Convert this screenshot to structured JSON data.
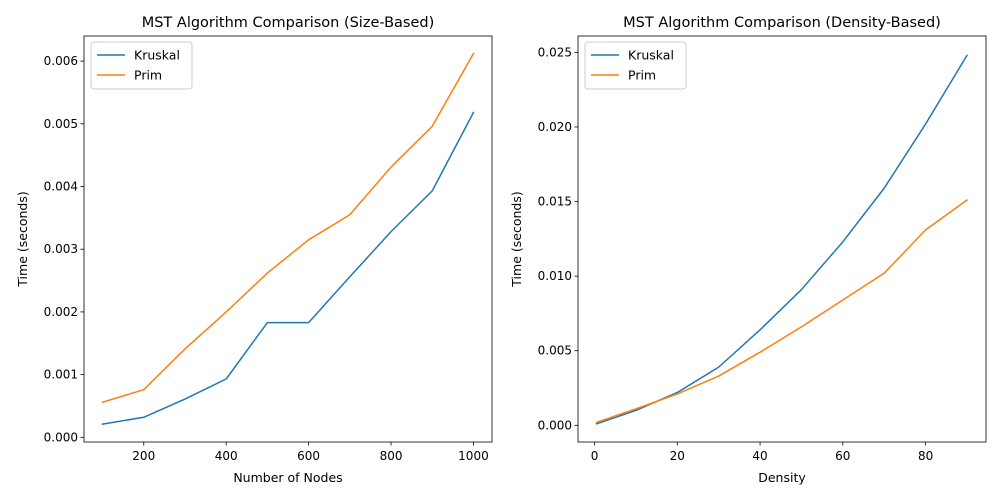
{
  "chart_data": [
    {
      "type": "line",
      "title": "MST Algorithm Comparison (Size-Based)",
      "xlabel": "Number of Nodes",
      "ylabel": "Time (seconds)",
      "xlim": [
        55,
        1045
      ],
      "ylim": [
        -7.46e-05,
        0.0064
      ],
      "xticks": [
        200,
        400,
        600,
        800,
        1000
      ],
      "xtick_labels": [
        "200",
        "400",
        "600",
        "800",
        "1000"
      ],
      "yticks": [
        0,
        0.001,
        0.002,
        0.003,
        0.004,
        0.005,
        0.006
      ],
      "ytick_labels": [
        "0.000",
        "0.001",
        "0.002",
        "0.003",
        "0.004",
        "0.005",
        "0.006"
      ],
      "legend_position": "top-left",
      "grid": false,
      "x": [
        100,
        200,
        300,
        400,
        500,
        600,
        700,
        800,
        900,
        1000
      ],
      "series": [
        {
          "name": "Kruskal",
          "color": "#1f77b4",
          "values": [
            0.00021,
            0.00032,
            0.00061,
            0.00093,
            0.00183,
            0.00183,
            0.00256,
            0.00328,
            0.00393,
            0.00518
          ]
        },
        {
          "name": "Prim",
          "color": "#ff7f0e",
          "values": [
            0.00056,
            0.00076,
            0.00141,
            0.002,
            0.00262,
            0.00315,
            0.00355,
            0.00431,
            0.00496,
            0.00612
          ]
        }
      ]
    },
    {
      "type": "line",
      "title": "MST Algorithm Comparison (Density-Based)",
      "xlabel": "Density",
      "ylabel": "Time (seconds)",
      "xlim": [
        -4,
        94.6
      ],
      "ylim": [
        -0.00112,
        0.0261
      ],
      "xticks": [
        0,
        20,
        40,
        60,
        80
      ],
      "xtick_labels": [
        "0",
        "20",
        "40",
        "60",
        "80"
      ],
      "yticks": [
        0,
        0.005,
        0.01,
        0.015,
        0.02,
        0.025
      ],
      "ytick_labels": [
        "0.000",
        "0.005",
        "0.010",
        "0.015",
        "0.020",
        "0.025"
      ],
      "legend_position": "top-left",
      "grid": false,
      "x": [
        0.5,
        10,
        20,
        30,
        40,
        50,
        60,
        70,
        80,
        90
      ],
      "series": [
        {
          "name": "Kruskal",
          "color": "#1f77b4",
          "values": [
            0.0001,
            0.001,
            0.0022,
            0.0039,
            0.0064,
            0.0091,
            0.0123,
            0.0159,
            0.0202,
            0.0248
          ]
        },
        {
          "name": "Prim",
          "color": "#ff7f0e",
          "values": [
            0.0002,
            0.0011,
            0.0021,
            0.0033,
            0.0049,
            0.0066,
            0.0084,
            0.0102,
            0.0131,
            0.0151
          ]
        }
      ]
    }
  ]
}
